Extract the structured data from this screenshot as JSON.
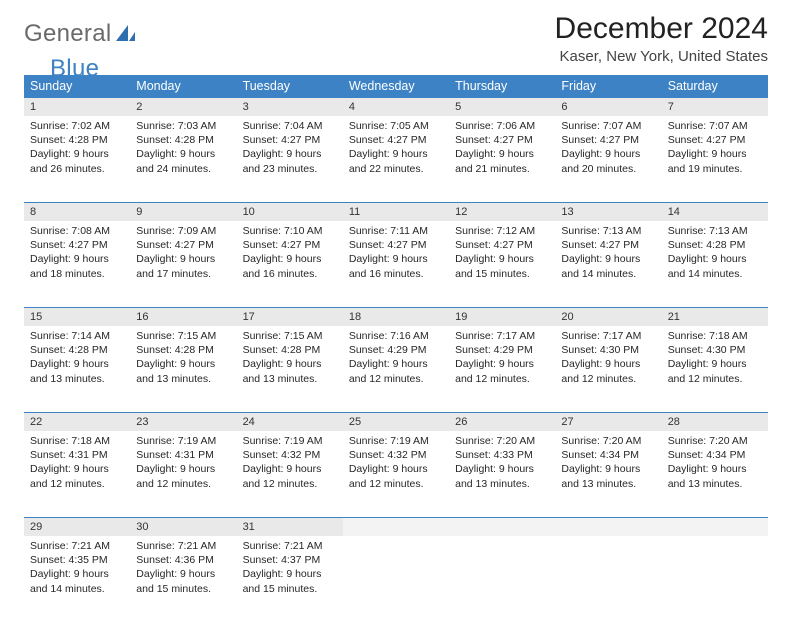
{
  "brand": {
    "general": "General",
    "blue": "Blue"
  },
  "colors": {
    "header_bg": "#3c82c4",
    "header_fg": "#ffffff",
    "daynum_bg": "#e9e9e9",
    "rule": "#3c82c4"
  },
  "title": "December 2024",
  "location": "Kaser, New York, United States",
  "weekdays": [
    "Sunday",
    "Monday",
    "Tuesday",
    "Wednesday",
    "Thursday",
    "Friday",
    "Saturday"
  ],
  "weeks": [
    [
      {
        "num": "1",
        "sunrise": "Sunrise: 7:02 AM",
        "sunset": "Sunset: 4:28 PM",
        "day1": "Daylight: 9 hours",
        "day2": "and 26 minutes."
      },
      {
        "num": "2",
        "sunrise": "Sunrise: 7:03 AM",
        "sunset": "Sunset: 4:28 PM",
        "day1": "Daylight: 9 hours",
        "day2": "and 24 minutes."
      },
      {
        "num": "3",
        "sunrise": "Sunrise: 7:04 AM",
        "sunset": "Sunset: 4:27 PM",
        "day1": "Daylight: 9 hours",
        "day2": "and 23 minutes."
      },
      {
        "num": "4",
        "sunrise": "Sunrise: 7:05 AM",
        "sunset": "Sunset: 4:27 PM",
        "day1": "Daylight: 9 hours",
        "day2": "and 22 minutes."
      },
      {
        "num": "5",
        "sunrise": "Sunrise: 7:06 AM",
        "sunset": "Sunset: 4:27 PM",
        "day1": "Daylight: 9 hours",
        "day2": "and 21 minutes."
      },
      {
        "num": "6",
        "sunrise": "Sunrise: 7:07 AM",
        "sunset": "Sunset: 4:27 PM",
        "day1": "Daylight: 9 hours",
        "day2": "and 20 minutes."
      },
      {
        "num": "7",
        "sunrise": "Sunrise: 7:07 AM",
        "sunset": "Sunset: 4:27 PM",
        "day1": "Daylight: 9 hours",
        "day2": "and 19 minutes."
      }
    ],
    [
      {
        "num": "8",
        "sunrise": "Sunrise: 7:08 AM",
        "sunset": "Sunset: 4:27 PM",
        "day1": "Daylight: 9 hours",
        "day2": "and 18 minutes."
      },
      {
        "num": "9",
        "sunrise": "Sunrise: 7:09 AM",
        "sunset": "Sunset: 4:27 PM",
        "day1": "Daylight: 9 hours",
        "day2": "and 17 minutes."
      },
      {
        "num": "10",
        "sunrise": "Sunrise: 7:10 AM",
        "sunset": "Sunset: 4:27 PM",
        "day1": "Daylight: 9 hours",
        "day2": "and 16 minutes."
      },
      {
        "num": "11",
        "sunrise": "Sunrise: 7:11 AM",
        "sunset": "Sunset: 4:27 PM",
        "day1": "Daylight: 9 hours",
        "day2": "and 16 minutes."
      },
      {
        "num": "12",
        "sunrise": "Sunrise: 7:12 AM",
        "sunset": "Sunset: 4:27 PM",
        "day1": "Daylight: 9 hours",
        "day2": "and 15 minutes."
      },
      {
        "num": "13",
        "sunrise": "Sunrise: 7:13 AM",
        "sunset": "Sunset: 4:27 PM",
        "day1": "Daylight: 9 hours",
        "day2": "and 14 minutes."
      },
      {
        "num": "14",
        "sunrise": "Sunrise: 7:13 AM",
        "sunset": "Sunset: 4:28 PM",
        "day1": "Daylight: 9 hours",
        "day2": "and 14 minutes."
      }
    ],
    [
      {
        "num": "15",
        "sunrise": "Sunrise: 7:14 AM",
        "sunset": "Sunset: 4:28 PM",
        "day1": "Daylight: 9 hours",
        "day2": "and 13 minutes."
      },
      {
        "num": "16",
        "sunrise": "Sunrise: 7:15 AM",
        "sunset": "Sunset: 4:28 PM",
        "day1": "Daylight: 9 hours",
        "day2": "and 13 minutes."
      },
      {
        "num": "17",
        "sunrise": "Sunrise: 7:15 AM",
        "sunset": "Sunset: 4:28 PM",
        "day1": "Daylight: 9 hours",
        "day2": "and 13 minutes."
      },
      {
        "num": "18",
        "sunrise": "Sunrise: 7:16 AM",
        "sunset": "Sunset: 4:29 PM",
        "day1": "Daylight: 9 hours",
        "day2": "and 12 minutes."
      },
      {
        "num": "19",
        "sunrise": "Sunrise: 7:17 AM",
        "sunset": "Sunset: 4:29 PM",
        "day1": "Daylight: 9 hours",
        "day2": "and 12 minutes."
      },
      {
        "num": "20",
        "sunrise": "Sunrise: 7:17 AM",
        "sunset": "Sunset: 4:30 PM",
        "day1": "Daylight: 9 hours",
        "day2": "and 12 minutes."
      },
      {
        "num": "21",
        "sunrise": "Sunrise: 7:18 AM",
        "sunset": "Sunset: 4:30 PM",
        "day1": "Daylight: 9 hours",
        "day2": "and 12 minutes."
      }
    ],
    [
      {
        "num": "22",
        "sunrise": "Sunrise: 7:18 AM",
        "sunset": "Sunset: 4:31 PM",
        "day1": "Daylight: 9 hours",
        "day2": "and 12 minutes."
      },
      {
        "num": "23",
        "sunrise": "Sunrise: 7:19 AM",
        "sunset": "Sunset: 4:31 PM",
        "day1": "Daylight: 9 hours",
        "day2": "and 12 minutes."
      },
      {
        "num": "24",
        "sunrise": "Sunrise: 7:19 AM",
        "sunset": "Sunset: 4:32 PM",
        "day1": "Daylight: 9 hours",
        "day2": "and 12 minutes."
      },
      {
        "num": "25",
        "sunrise": "Sunrise: 7:19 AM",
        "sunset": "Sunset: 4:32 PM",
        "day1": "Daylight: 9 hours",
        "day2": "and 12 minutes."
      },
      {
        "num": "26",
        "sunrise": "Sunrise: 7:20 AM",
        "sunset": "Sunset: 4:33 PM",
        "day1": "Daylight: 9 hours",
        "day2": "and 13 minutes."
      },
      {
        "num": "27",
        "sunrise": "Sunrise: 7:20 AM",
        "sunset": "Sunset: 4:34 PM",
        "day1": "Daylight: 9 hours",
        "day2": "and 13 minutes."
      },
      {
        "num": "28",
        "sunrise": "Sunrise: 7:20 AM",
        "sunset": "Sunset: 4:34 PM",
        "day1": "Daylight: 9 hours",
        "day2": "and 13 minutes."
      }
    ],
    [
      {
        "num": "29",
        "sunrise": "Sunrise: 7:21 AM",
        "sunset": "Sunset: 4:35 PM",
        "day1": "Daylight: 9 hours",
        "day2": "and 14 minutes."
      },
      {
        "num": "30",
        "sunrise": "Sunrise: 7:21 AM",
        "sunset": "Sunset: 4:36 PM",
        "day1": "Daylight: 9 hours",
        "day2": "and 15 minutes."
      },
      {
        "num": "31",
        "sunrise": "Sunrise: 7:21 AM",
        "sunset": "Sunset: 4:37 PM",
        "day1": "Daylight: 9 hours",
        "day2": "and 15 minutes."
      },
      {
        "blank": true
      },
      {
        "blank": true
      },
      {
        "blank": true
      },
      {
        "blank": true
      }
    ]
  ]
}
